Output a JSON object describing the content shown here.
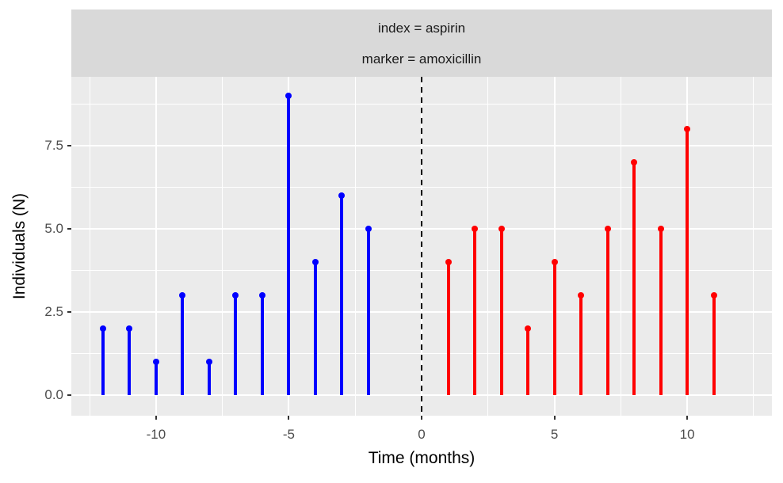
{
  "chart_data": {
    "type": "scatter",
    "style": "stem-lollipop",
    "facet_strip_lines": [
      "index = aspirin",
      "marker = amoxicillin"
    ],
    "xlabel": "Time (months)",
    "ylabel": "Individuals (N)",
    "x_ticks": [
      {
        "value": -10,
        "label": "-10"
      },
      {
        "value": -5,
        "label": "-5"
      },
      {
        "value": 0,
        "label": "0"
      },
      {
        "value": 5,
        "label": "5"
      },
      {
        "value": 10,
        "label": "10"
      }
    ],
    "y_ticks": [
      {
        "value": 0,
        "label": "0.0"
      },
      {
        "value": 2.5,
        "label": "2.5"
      },
      {
        "value": 5,
        "label": "5.0"
      },
      {
        "value": 7.5,
        "label": "7.5"
      }
    ],
    "x_minor": [
      -12.5,
      -7.5,
      -2.5,
      2.5,
      7.5,
      12.5
    ],
    "y_minor": [
      1.25,
      3.75,
      6.25,
      8.75
    ],
    "xlim": [
      -13.19,
      13.19
    ],
    "ylim": [
      -0.62,
      9.57
    ],
    "grid": "on",
    "legend": "none",
    "reference_line": {
      "x": 0,
      "style": "dashed",
      "color": "#000000"
    },
    "series": [
      {
        "name": "blue",
        "color": "#0000FF",
        "x": [
          -12,
          -11,
          -10,
          -9,
          -8,
          -7,
          -6,
          -5,
          -4,
          -3,
          -2
        ],
        "y": [
          2,
          2,
          1,
          3,
          1,
          3,
          3,
          9,
          4,
          6,
          5
        ]
      },
      {
        "name": "red",
        "color": "#FF0000",
        "x": [
          1,
          2,
          3,
          4,
          5,
          6,
          7,
          8,
          9,
          10,
          11
        ],
        "y": [
          4,
          5,
          5,
          2,
          4,
          3,
          5,
          7,
          5,
          8,
          3
        ]
      }
    ],
    "colors": {
      "panel_bg": "#EBEBEB",
      "strip_bg": "#D9D9D9",
      "gridline": "#FFFFFF",
      "tick_mark": "#333333",
      "tick_label": "#4D4D4D",
      "axis_title": "#000000"
    }
  }
}
